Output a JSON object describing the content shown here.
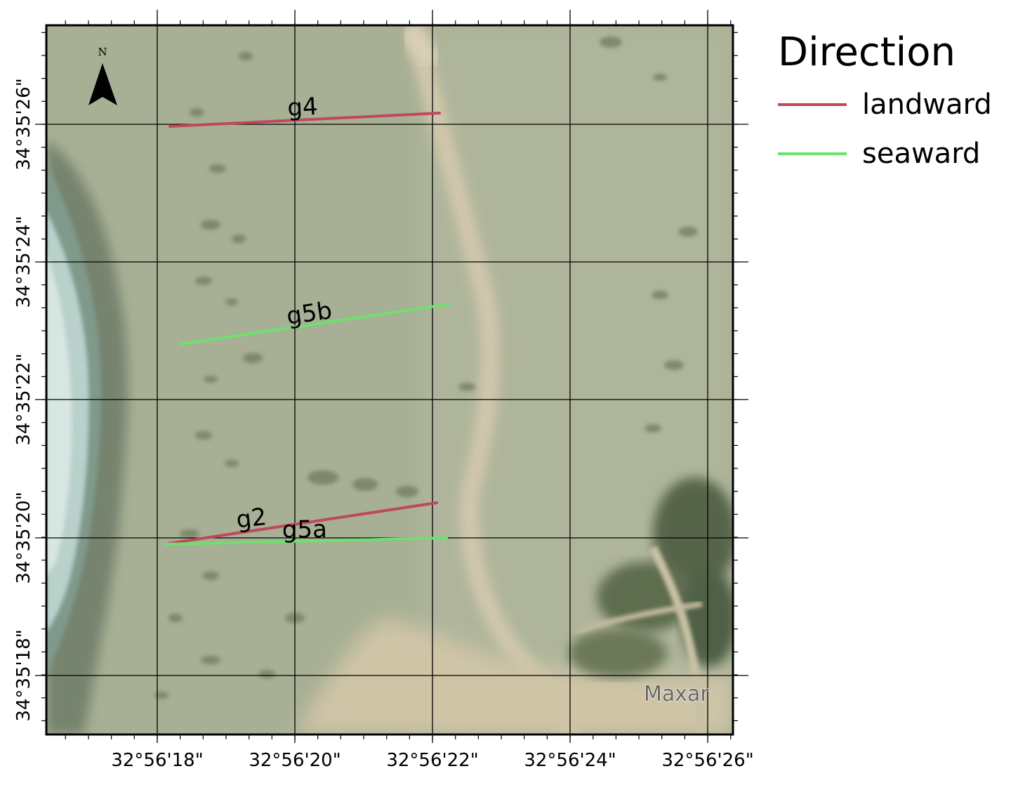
{
  "map": {
    "north_arrow_label": "N",
    "attribution": "Maxar",
    "lon_labels": [
      "32°56'18\"",
      "32°56'20\"",
      "32°56'22\"",
      "32°56'24\"",
      "32°56'26\""
    ],
    "lat_labels": [
      "34°35'26\"",
      "34°35'24\"",
      "34°35'22\"",
      "34°35'20\"",
      "34°35'18\""
    ],
    "transects": [
      {
        "label": "g4",
        "direction": "landward"
      },
      {
        "label": "g5b",
        "direction": "seaward"
      },
      {
        "label": "g2",
        "direction": "landward"
      },
      {
        "label": "g5a",
        "direction": "seaward"
      }
    ]
  },
  "legend": {
    "title": "Direction",
    "items": [
      {
        "label": "landward",
        "color": "#c0485a"
      },
      {
        "label": "seaward",
        "color": "#6fe06f"
      }
    ]
  },
  "colors": {
    "land": "#a9b095",
    "sea": "#7f9a8b",
    "surf": "#c6dcd8",
    "sand_path": "#d2c8ac",
    "vegetation": "#5f6b4d",
    "landward": "#c0485a",
    "seaward": "#6fe06f"
  }
}
